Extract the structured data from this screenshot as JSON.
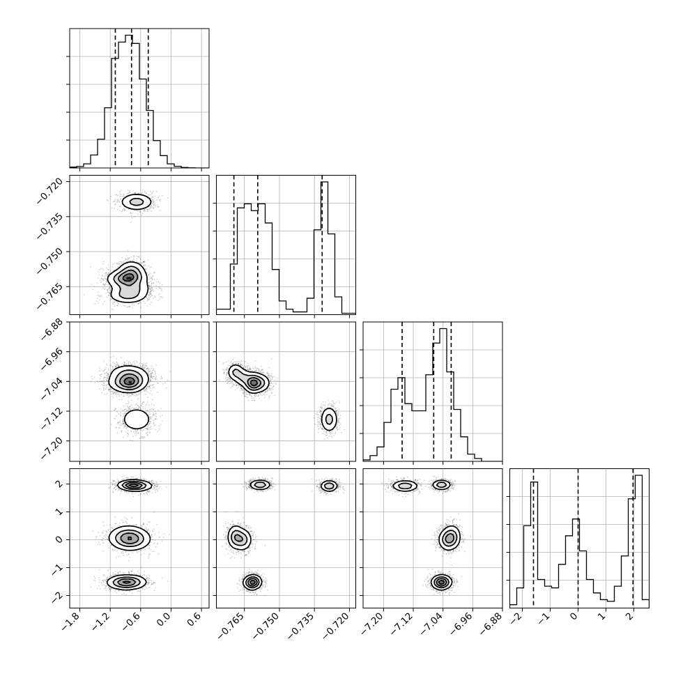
{
  "chart_data": {
    "type": "corner",
    "grid": true,
    "colors": {
      "hist": "#000000",
      "contour": "#000000",
      "points": "#4d4d4d",
      "grid": "#b0b0b0",
      "quantile": "#000000"
    },
    "params": [
      {
        "range": [
          -2.0,
          0.75
        ],
        "ticks": [
          -1.8,
          -1.2,
          -0.6,
          0.0,
          0.6
        ],
        "tick_labels": [
          "−1.8",
          "−1.2",
          "−0.6",
          "0.0",
          "0.6"
        ],
        "quantiles": [
          -1.1,
          -0.78,
          -0.45
        ],
        "hist": [
          0.006,
          0.011,
          0.03,
          0.095,
          0.21,
          0.44,
          0.8,
          0.92,
          0.97,
          0.91,
          0.65,
          0.42,
          0.2,
          0.09,
          0.03,
          0.012,
          0.004,
          0.001,
          0,
          0
        ]
      },
      {
        "range": [
          -0.777,
          -0.7173
        ],
        "ticks": [
          -0.765,
          -0.75,
          -0.735,
          -0.72
        ],
        "tick_labels": [
          "−0.765",
          "−0.750",
          "−0.735",
          "−0.720"
        ],
        "quantiles": [
          -0.7695,
          -0.7593,
          -0.7317
        ],
        "hist": [
          0.04,
          0.04,
          0.37,
          0.78,
          0.81,
          0.76,
          0.81,
          0.67,
          0.33,
          0.1,
          0.04,
          0.02,
          0.02,
          0.12,
          0.62,
          0.97,
          0.59,
          0.13,
          0.01,
          0.01
        ]
      },
      {
        "range": [
          -7.255,
          -6.88
        ],
        "ticks": [
          -7.2,
          -7.12,
          -7.04,
          -6.96,
          -6.88
        ],
        "tick_labels": [
          "−7.20",
          "−7.12",
          "−7.04",
          "−6.96",
          "−6.88"
        ],
        "quantiles": [
          -7.15,
          -7.065,
          -7.018
        ],
        "hist": [
          0.01,
          0.04,
          0.1,
          0.27,
          0.5,
          0.58,
          0.4,
          0.35,
          0.35,
          0.6,
          0.82,
          0.92,
          0.62,
          0.36,
          0.17,
          0.05,
          0.02,
          0,
          0,
          0
        ]
      },
      {
        "range": [
          -2.45,
          2.55
        ],
        "ticks": [
          -2,
          -1,
          0,
          1,
          2
        ],
        "tick_labels": [
          "−2",
          "−1",
          "0",
          "1",
          "2"
        ],
        "quantiles": [
          -1.6,
          0.0,
          1.97
        ],
        "hist": [
          0.02,
          0.12,
          0.49,
          0.75,
          0.17,
          0.13,
          0.12,
          0.26,
          0.43,
          0.53,
          0.34,
          0.17,
          0.09,
          0.05,
          0.04,
          0.13,
          0.31,
          0.65,
          0.79,
          0.05
        ]
      }
    ],
    "modes": [
      {
        "p0": -0.78,
        "p1": -0.7583,
        "p2": -7.044,
        "p3": 1.97,
        "s0": 0.14,
        "s1": 0.0023,
        "s2": 0.013,
        "s3": 0.09,
        "w": 1.0
      },
      {
        "p0": -0.68,
        "p1": -0.7287,
        "p2": -7.142,
        "p3": 1.93,
        "s0": 0.17,
        "s1": 0.0019,
        "s2": 0.018,
        "s3": 0.1,
        "w": 1.0
      },
      {
        "p0": -0.85,
        "p1": -0.7688,
        "p2": -7.015,
        "p3": 0.1,
        "s0": 0.2,
        "s1": 0.0018,
        "s2": 0.012,
        "s3": 0.22,
        "w": 0.9
      },
      {
        "p0": -0.85,
        "p1": -0.761,
        "p2": -7.043,
        "p3": -1.5,
        "s0": 0.19,
        "s1": 0.0018,
        "s2": 0.014,
        "s3": 0.13,
        "w": 0.85
      },
      {
        "p0": -0.9,
        "p1": -0.762,
        "p2": -7.045,
        "p3": -1.55,
        "s0": 0.19,
        "s1": 0.0019,
        "s2": 0.013,
        "s3": 0.13,
        "w": 0.9
      },
      {
        "p0": -0.78,
        "p1": -0.7655,
        "p2": -7.03,
        "p3": 0.0,
        "s0": 0.2,
        "s1": 0.0019,
        "s2": 0.012,
        "s3": 0.2,
        "w": 0.8
      }
    ]
  }
}
